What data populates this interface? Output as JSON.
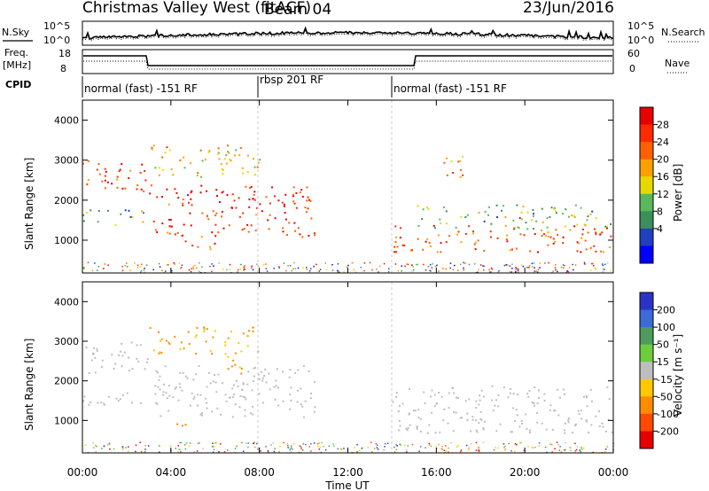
{
  "header": {
    "station": "Christmas Valley West (fitACF)",
    "beam": "Beam 04",
    "date": "23/Jun/2016"
  },
  "left_labels": {
    "nsky": "N.Sky",
    "freq_line1": "Freq.",
    "freq_line2": "[MHz]",
    "cpid": "CPID"
  },
  "right_labels": {
    "nsearch": "N.Search",
    "nave": "Nave"
  },
  "noise_panel": {
    "left_ticks": [
      "10^5",
      "10^0"
    ],
    "right_ticks": [
      "10^5",
      "10^0"
    ]
  },
  "freq_panel": {
    "left_ticks": [
      "18",
      "8"
    ],
    "right_ticks": [
      "60",
      "0"
    ]
  },
  "cpid_segments": [
    {
      "label": "normal (fast) -151 RF",
      "start_hour": 0
    },
    {
      "label": "rbsp 201 RF",
      "start_hour": 8
    },
    {
      "label": "normal (fast) -151 RF",
      "start_hour": 14
    }
  ],
  "range_time": {
    "ylabel": "Slant Range [km]",
    "yticks": [
      "1000",
      "2000",
      "3000",
      "4000"
    ],
    "xlabel": "Time UT",
    "xticks": [
      "00:00",
      "04:00",
      "08:00",
      "12:00",
      "16:00",
      "20:00",
      "00:00"
    ]
  },
  "power_scale": {
    "label": "Power [dB]",
    "ticks": [
      "4",
      "8",
      "12",
      "16",
      "20",
      "24",
      "28"
    ],
    "colors": [
      "#0000ff",
      "#2040c0",
      "#3c8f5a",
      "#5ab85a",
      "#e8d800",
      "#ffa000",
      "#ff6000",
      "#ff2a00",
      "#e80000"
    ]
  },
  "velocity_scale": {
    "label": "Velocity [m s⁻¹]",
    "ticks": [
      "200",
      "100",
      "50",
      "15",
      "-15",
      "-50",
      "-100",
      "-200"
    ],
    "colors": [
      "#2a33c8",
      "#3c6ad8",
      "#4f9b5e",
      "#6dcc3c",
      "#bebebe",
      "#ffc800",
      "#ff8c00",
      "#ff4a00",
      "#e60000"
    ]
  },
  "chart_data": [
    {
      "type": "heatmap",
      "name": "power",
      "x_range_hours": [
        0,
        24
      ],
      "ylim": [
        180,
        4500
      ],
      "regions": [
        {
          "start": 0.0,
          "end": 3.0,
          "range_low": 2200,
          "range_high": 3000,
          "value": 24
        },
        {
          "start": 0.0,
          "end": 3.0,
          "range_low": 1400,
          "range_high": 1800,
          "value": 12
        },
        {
          "start": 3.0,
          "end": 10.5,
          "range_low": 1100,
          "range_high": 2400,
          "value": 26
        },
        {
          "start": 3.0,
          "end": 8.0,
          "range_low": 2600,
          "range_high": 3400,
          "value": 18
        },
        {
          "start": 4.2,
          "end": 6.0,
          "range_low": 750,
          "range_high": 1000,
          "value": 22
        },
        {
          "start": 14.0,
          "end": 24.0,
          "range_low": 700,
          "range_high": 1400,
          "value": 24
        },
        {
          "start": 15.0,
          "end": 24.0,
          "range_low": 1300,
          "range_high": 1900,
          "value": 12
        },
        {
          "start": 16.0,
          "end": 17.2,
          "range_low": 2500,
          "range_high": 3200,
          "value": 20
        }
      ]
    },
    {
      "type": "heatmap",
      "name": "velocity",
      "x_range_hours": [
        0,
        24
      ],
      "ylim": [
        180,
        4500
      ],
      "regions": [
        {
          "start": 0.0,
          "end": 3.0,
          "range_low": 2200,
          "range_high": 3000,
          "value": 0
        },
        {
          "start": 0.0,
          "end": 3.0,
          "range_low": 1400,
          "range_high": 1800,
          "value": 0
        },
        {
          "start": 3.0,
          "end": 10.5,
          "range_low": 1100,
          "range_high": 2400,
          "value": 0
        },
        {
          "start": 3.0,
          "end": 8.0,
          "range_low": 2700,
          "range_high": 3400,
          "value": -60
        },
        {
          "start": 6.3,
          "end": 7.2,
          "range_low": 2000,
          "range_high": 2700,
          "value": -60
        },
        {
          "start": 4.2,
          "end": 5.2,
          "range_low": 750,
          "range_high": 1000,
          "value": -70
        },
        {
          "start": 14.0,
          "end": 24.0,
          "range_low": 700,
          "range_high": 1900,
          "value": 0
        }
      ]
    }
  ]
}
